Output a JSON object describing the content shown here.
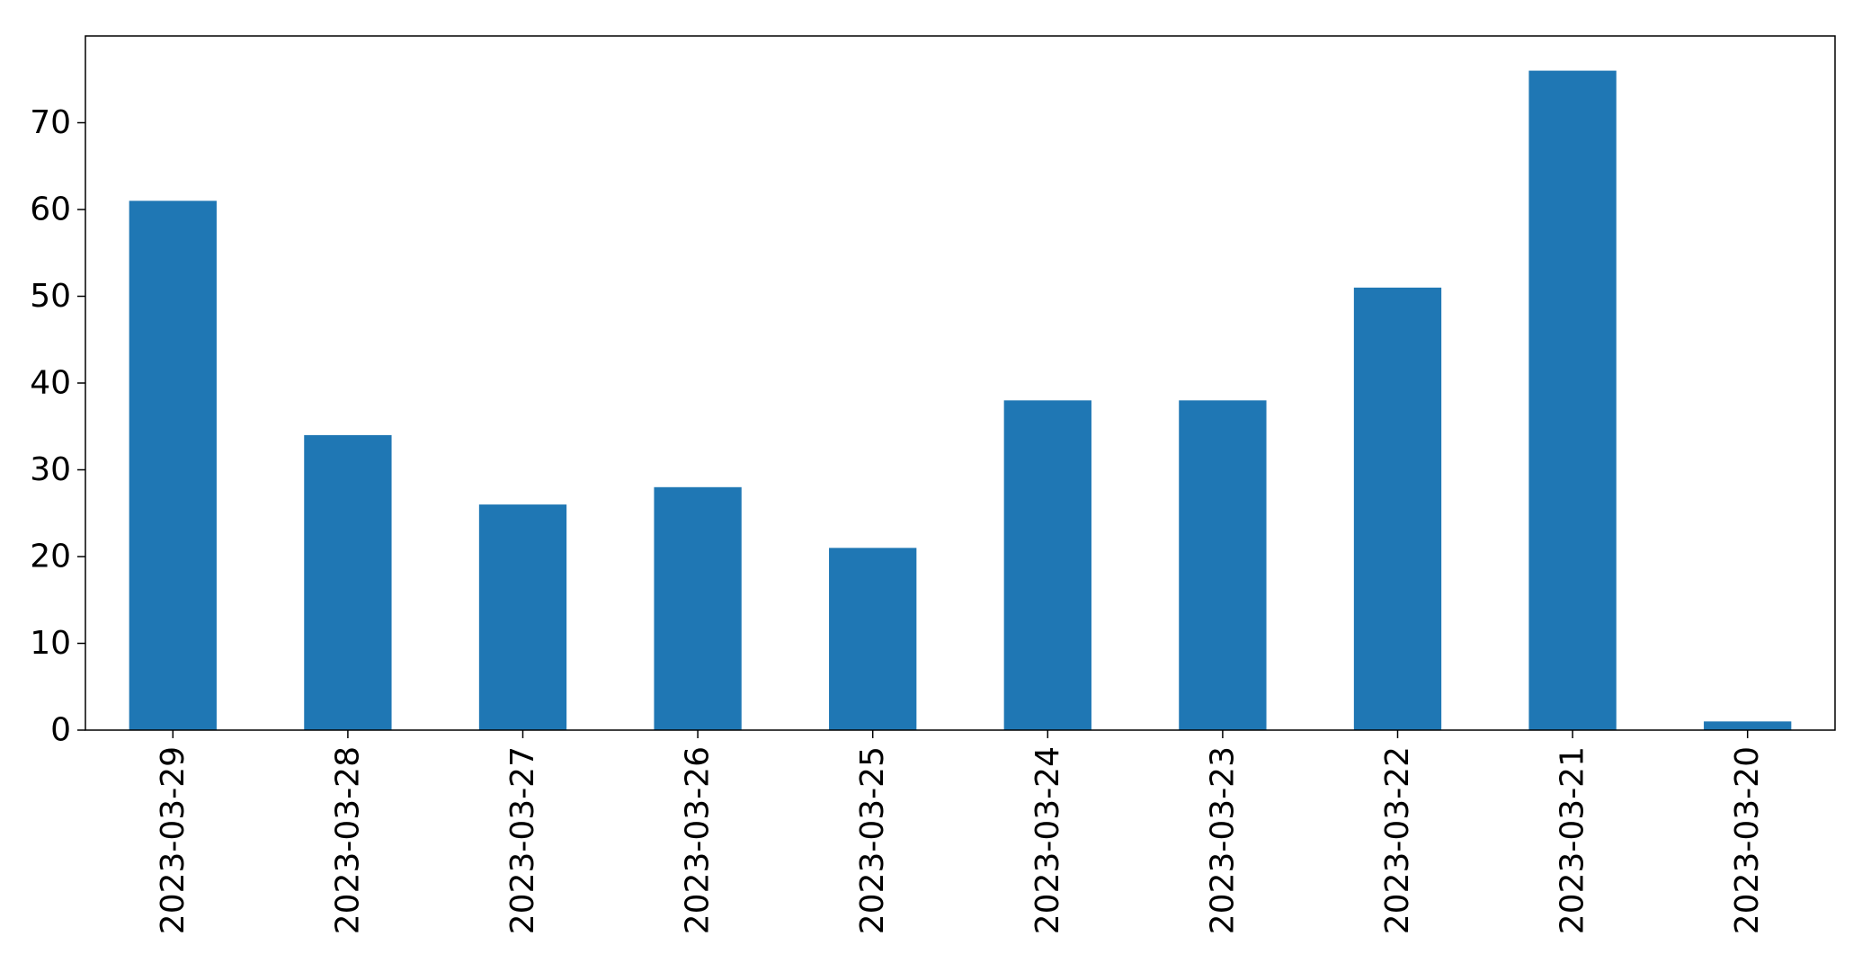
{
  "chart_data": {
    "type": "bar",
    "categories": [
      "2023-03-29",
      "2023-03-28",
      "2023-03-27",
      "2023-03-26",
      "2023-03-25",
      "2023-03-24",
      "2023-03-23",
      "2023-03-22",
      "2023-03-21",
      "2023-03-20"
    ],
    "values": [
      61,
      34,
      26,
      28,
      21,
      38,
      38,
      51,
      76,
      1
    ],
    "title": "",
    "xlabel": "",
    "ylabel": "",
    "ylim": [
      0,
      80
    ],
    "yticks": [
      0,
      10,
      20,
      30,
      40,
      50,
      60,
      70
    ],
    "grid": false,
    "legend": "none",
    "bar_color": "#1f77b4"
  }
}
